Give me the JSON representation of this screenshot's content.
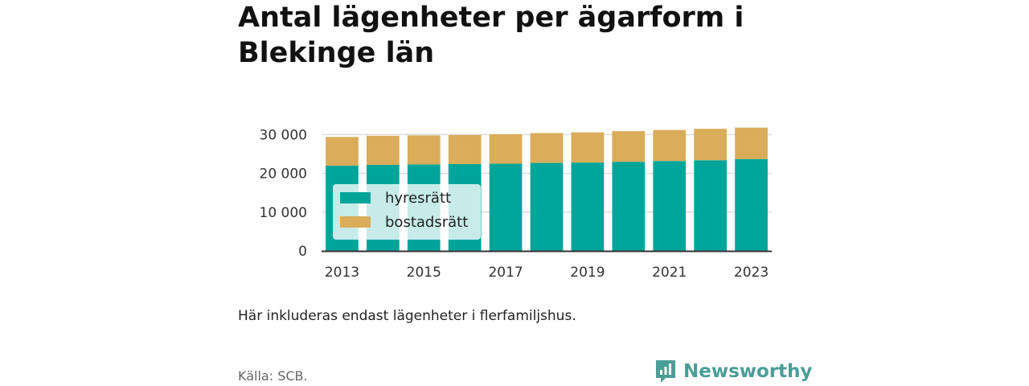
{
  "title": "Antal lägenheter per ägarform i Blekinge län",
  "note": "Här inkluderas endast lägenheter i flerfamiljshus.",
  "source": "Källa: SCB.",
  "brand": {
    "name": "Newsworthy",
    "icon": "newsworthy-logo-icon",
    "color": "#4a9e95"
  },
  "colors": {
    "hyresratt": "#00a59a",
    "bostadsratt": "#daad5a",
    "grid": "#dddddd",
    "axis": "#333333"
  },
  "chart_data": {
    "type": "bar",
    "stacked": true,
    "categories": [
      "2013",
      "2014",
      "2015",
      "2016",
      "2017",
      "2018",
      "2019",
      "2020",
      "2021",
      "2022",
      "2023"
    ],
    "x_tick_labels": [
      "2013",
      "2015",
      "2017",
      "2019",
      "2021",
      "2023"
    ],
    "series": [
      {
        "name": "hyresrätt",
        "values": [
          22000,
          22200,
          22300,
          22400,
          22500,
          22700,
          22800,
          23000,
          23200,
          23400,
          23700
        ]
      },
      {
        "name": "bostadsrätt",
        "values": [
          7400,
          7500,
          7500,
          7500,
          7600,
          7700,
          7800,
          7900,
          8000,
          8100,
          8100
        ]
      }
    ],
    "y_ticks": [
      0,
      10000,
      20000,
      30000
    ],
    "y_tick_labels": [
      "0",
      "10 000",
      "20 000",
      "30 000"
    ],
    "ylim": [
      0,
      33000
    ],
    "grid": true,
    "legend_position": "lower-left inside plot"
  }
}
